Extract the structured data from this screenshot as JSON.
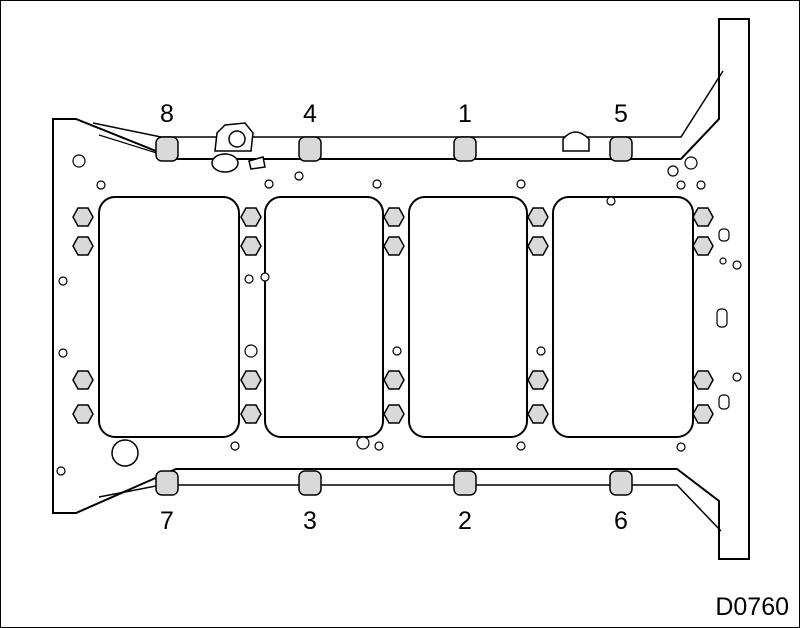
{
  "figure": {
    "code": "D0760",
    "bolt_labels": [
      "1",
      "2",
      "3",
      "4",
      "5",
      "6",
      "7",
      "8"
    ]
  },
  "colors": {
    "line": "#000000",
    "bolt_fill": "#d9d9d9",
    "background": "#ffffff"
  }
}
